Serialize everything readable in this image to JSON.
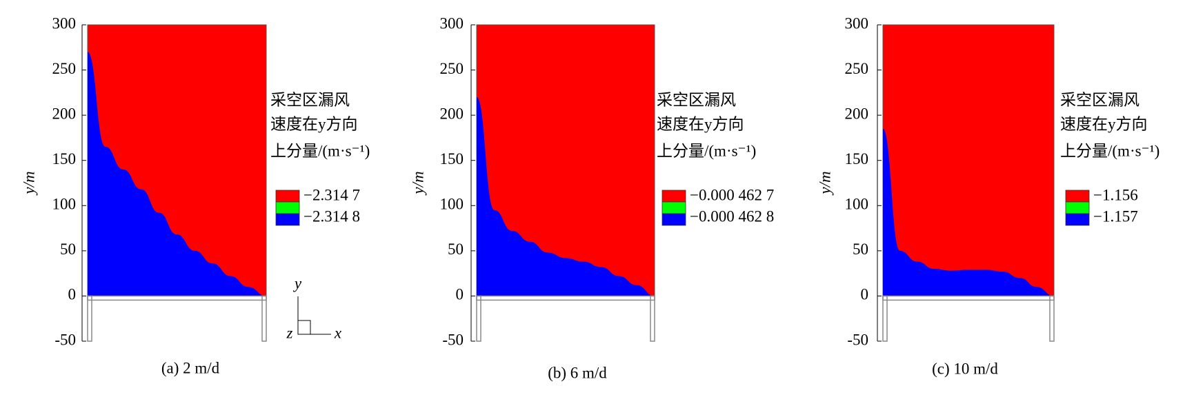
{
  "chart_data": [
    {
      "type": "contour",
      "ylabel": "y/m",
      "caption": "(a)  2 m/d",
      "legend_title": [
        "采空区漏风",
        "速度在y方向",
        "上分量/(m·s⁻¹)"
      ],
      "legend_labels": [
        "−2.314 7",
        "−2.314 8"
      ],
      "legend_colors": [
        "#ff0000",
        "#00ff00",
        "#0000ff"
      ],
      "categories": [
        null,
        null,
        null,
        null,
        null,
        null,
        null,
        null,
        null,
        null,
        null
      ],
      "values": [
        270,
        165,
        140,
        118,
        92,
        68,
        50,
        36,
        22,
        10,
        0
      ],
      "ylim": [
        -50,
        300
      ],
      "yticks": [
        300,
        250,
        200,
        150,
        100,
        50,
        0,
        -50
      ],
      "axis_triad": {
        "y": "y",
        "z": "z",
        "x": "x"
      }
    },
    {
      "type": "contour",
      "ylabel": "y/m",
      "caption": "(b)  6 m/d",
      "legend_title": [
        "采空区漏风",
        "速度在y方向",
        "上分量/(m·s⁻¹)"
      ],
      "legend_labels": [
        "−0.000 462 7",
        "−0.000 462 8"
      ],
      "legend_colors": [
        "#ff0000",
        "#00ff00",
        "#0000ff"
      ],
      "categories": [
        null,
        null,
        null,
        null,
        null,
        null,
        null,
        null,
        null,
        null,
        null
      ],
      "values": [
        220,
        95,
        72,
        60,
        48,
        42,
        38,
        32,
        22,
        12,
        0
      ],
      "ylim": [
        -50,
        300
      ],
      "yticks": [
        300,
        250,
        200,
        150,
        100,
        50,
        0,
        -50
      ]
    },
    {
      "type": "contour",
      "ylabel": "y/m",
      "caption": "(c)  10 m/d",
      "legend_title": [
        "采空区漏风",
        "速度在y方向",
        "上分量/(m·s⁻¹)"
      ],
      "legend_labels": [
        "−1.156",
        "−1.157"
      ],
      "legend_colors": [
        "#ff0000",
        "#00ff00",
        "#0000ff"
      ],
      "categories": [
        null,
        null,
        null,
        null,
        null,
        null,
        null,
        null,
        null,
        null,
        null
      ],
      "values": [
        185,
        50,
        38,
        30,
        28,
        29,
        29,
        27,
        20,
        10,
        0
      ],
      "ylim": [
        -50,
        300
      ],
      "yticks": [
        300,
        250,
        200,
        150,
        100,
        50,
        0,
        -50
      ]
    }
  ]
}
